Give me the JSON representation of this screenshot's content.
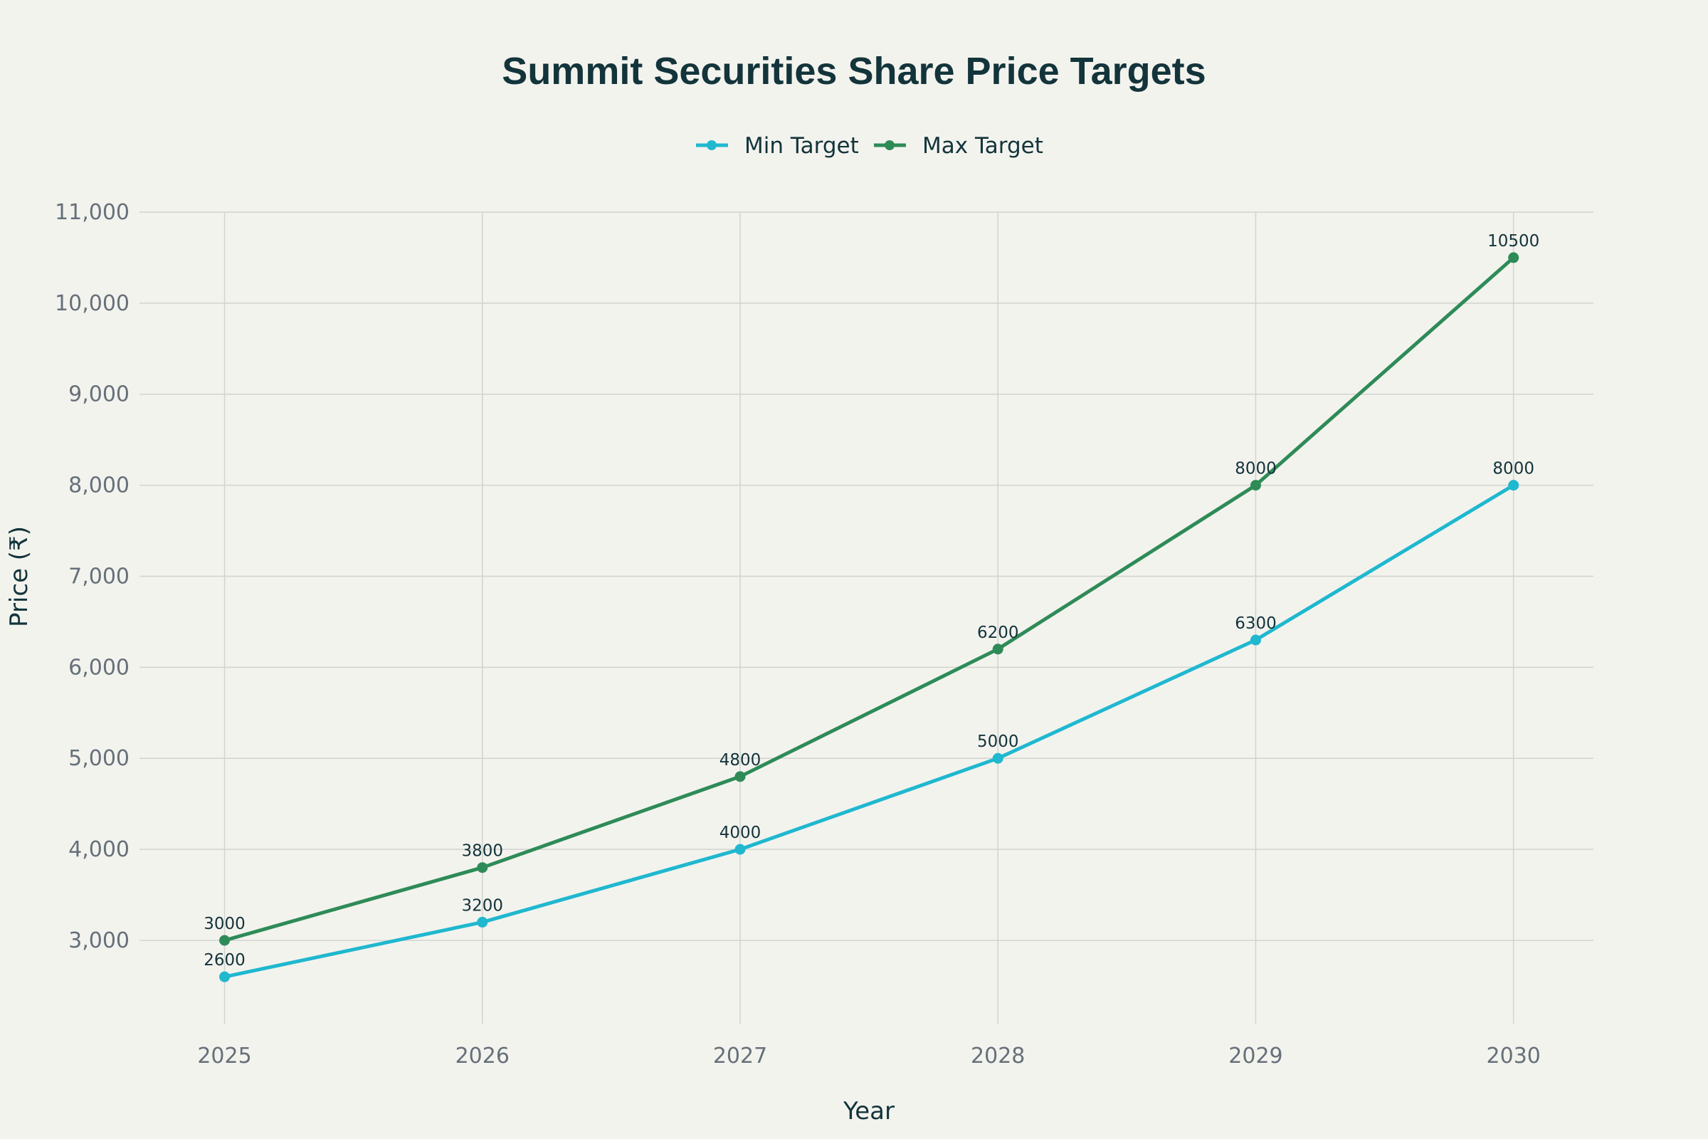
{
  "chart_data": {
    "type": "line",
    "title": "Summit Securities Share Price Targets",
    "xlabel": "Year",
    "ylabel": "Price (₹)",
    "x": [
      2025,
      2026,
      2027,
      2028,
      2029,
      2030
    ],
    "x_tick_labels": [
      "2025",
      "2026",
      "2027",
      "2028",
      "2029",
      "2030"
    ],
    "y_tick_labels": [
      "3,000",
      "4,000",
      "5,000",
      "6,000",
      "7,000",
      "8,000",
      "9,000",
      "10,000",
      "11,000"
    ],
    "y_ticks": [
      3000,
      4000,
      5000,
      6000,
      7000,
      8000,
      9000,
      10000,
      11000
    ],
    "ylim": [
      2085,
      11000
    ],
    "xlim": [
      2024.67,
      2030.31
    ],
    "grid": true,
    "legend": "top-center",
    "series": [
      {
        "name": "Min Target",
        "color": "#1fb8cf",
        "values": [
          2600,
          3200,
          4000,
          5000,
          6300,
          8000
        ],
        "labels": [
          "2600",
          "3200",
          "4000",
          "5000",
          "6300",
          "8000"
        ]
      },
      {
        "name": "Max Target",
        "color": "#2e8b57",
        "values": [
          3000,
          3800,
          4800,
          6200,
          8000,
          10500
        ],
        "labels": [
          "3000",
          "3800",
          "4800",
          "6200",
          "8000",
          "10500"
        ]
      }
    ]
  },
  "colors": {
    "background": "#f3f3ee",
    "title": "#13343b",
    "grid": "#d2d3cf"
  }
}
